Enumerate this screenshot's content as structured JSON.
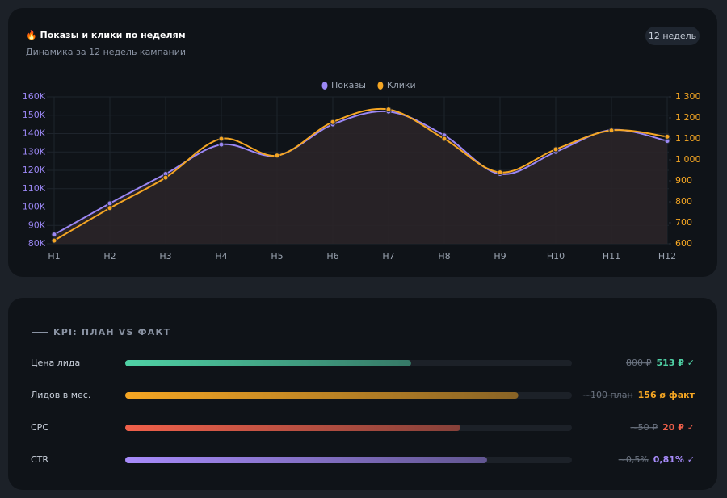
{
  "header": {
    "title": "🔥 Показы и клики по неделям",
    "subtitle": "Динамика за 12 недель кампании",
    "badge": "12 недель"
  },
  "chart_data": {
    "type": "line",
    "categories": [
      "Н1",
      "Н2",
      "Н3",
      "Н4",
      "Н5",
      "Н6",
      "Н7",
      "Н8",
      "Н9",
      "Н10",
      "Н11",
      "Н12"
    ],
    "series": [
      {
        "name": "Показы",
        "color": "#9b87f5",
        "axis": "y",
        "values": [
          85000,
          102000,
          118000,
          134000,
          128000,
          145000,
          152000,
          139000,
          118000,
          130000,
          142000,
          136000
        ]
      },
      {
        "name": "Клики",
        "color": "#f5a623",
        "axis": "y2",
        "values": [
          615,
          770,
          915,
          1100,
          1020,
          1180,
          1240,
          1100,
          940,
          1050,
          1140,
          1110
        ]
      }
    ],
    "ylim": [
      80000,
      160000
    ],
    "yticks": [
      {
        "value": 80000,
        "label": "80K"
      },
      {
        "value": 90000,
        "label": "90K"
      },
      {
        "value": 100000,
        "label": "100K"
      },
      {
        "value": 110000,
        "label": "110K"
      },
      {
        "value": 120000,
        "label": "120K"
      },
      {
        "value": 130000,
        "label": "130K"
      },
      {
        "value": 140000,
        "label": "140K"
      },
      {
        "value": 150000,
        "label": "150K"
      },
      {
        "value": 160000,
        "label": "160K"
      }
    ],
    "y2lim": [
      600,
      1300
    ],
    "y2ticks": [
      600,
      700,
      800,
      900,
      {
        "value": 1000,
        "label": "1 000"
      },
      {
        "value": 1100,
        "label": "1 100"
      },
      {
        "value": 1200,
        "label": "1 200"
      },
      {
        "value": 1300,
        "label": "1 300"
      }
    ],
    "grid": true,
    "legend": "top"
  },
  "kpi": {
    "title": "KPI: ПЛАН VS ФАКТ",
    "rows": [
      {
        "label": "Цена лида",
        "progress": 64,
        "plan": "800 ₽",
        "fact": "513 ₽ ✓",
        "color": "#4fd1a5"
      },
      {
        "label": "Лидов в мес.",
        "progress": 88,
        "plan": "~100 план",
        "fact": "156 ø факт",
        "color": "#f5a623"
      },
      {
        "label": "CPC",
        "progress": 75,
        "plan": "~50 ₽",
        "fact": "20 ₽ ✓",
        "color": "#f0604a"
      },
      {
        "label": "CTR",
        "progress": 81,
        "plan": "~0,5%",
        "fact": "0,81% ✓",
        "color": "#a78bfa"
      }
    ]
  }
}
